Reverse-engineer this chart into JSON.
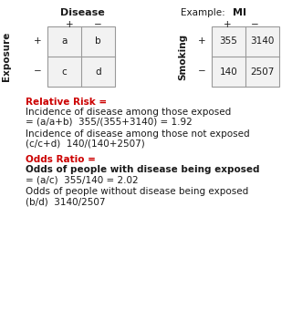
{
  "example_label": "Example:",
  "disease_label": "Disease",
  "mi_label": "MI",
  "exposure_label": "Exposure",
  "smoking_label": "Smoking",
  "plus": "+",
  "minus": "−",
  "rr_label": "Relative Risk =",
  "rr_line1": "Incidence of disease among those exposed",
  "rr_line2": "= (a/a+b)  355/(355+3140) = 1.92",
  "rr_line3": "Incidence of disease among those not exposed",
  "rr_line4": "(c/c+d)  140/(140+2507)",
  "or_label": "Odds Ratio =",
  "or_line1": "Odds of people with disease being exposed",
  "or_line2": "= (a/c)  355/140 = 2.02",
  "or_line3": "Odds of people without disease being exposed",
  "or_line4": "(b/d)  3140/2507",
  "red_color": "#cc0000",
  "black_color": "#1a1a1a",
  "bg_color": "#ffffff",
  "grid_color": "#999999",
  "cell_bg": "#f2f2f2"
}
